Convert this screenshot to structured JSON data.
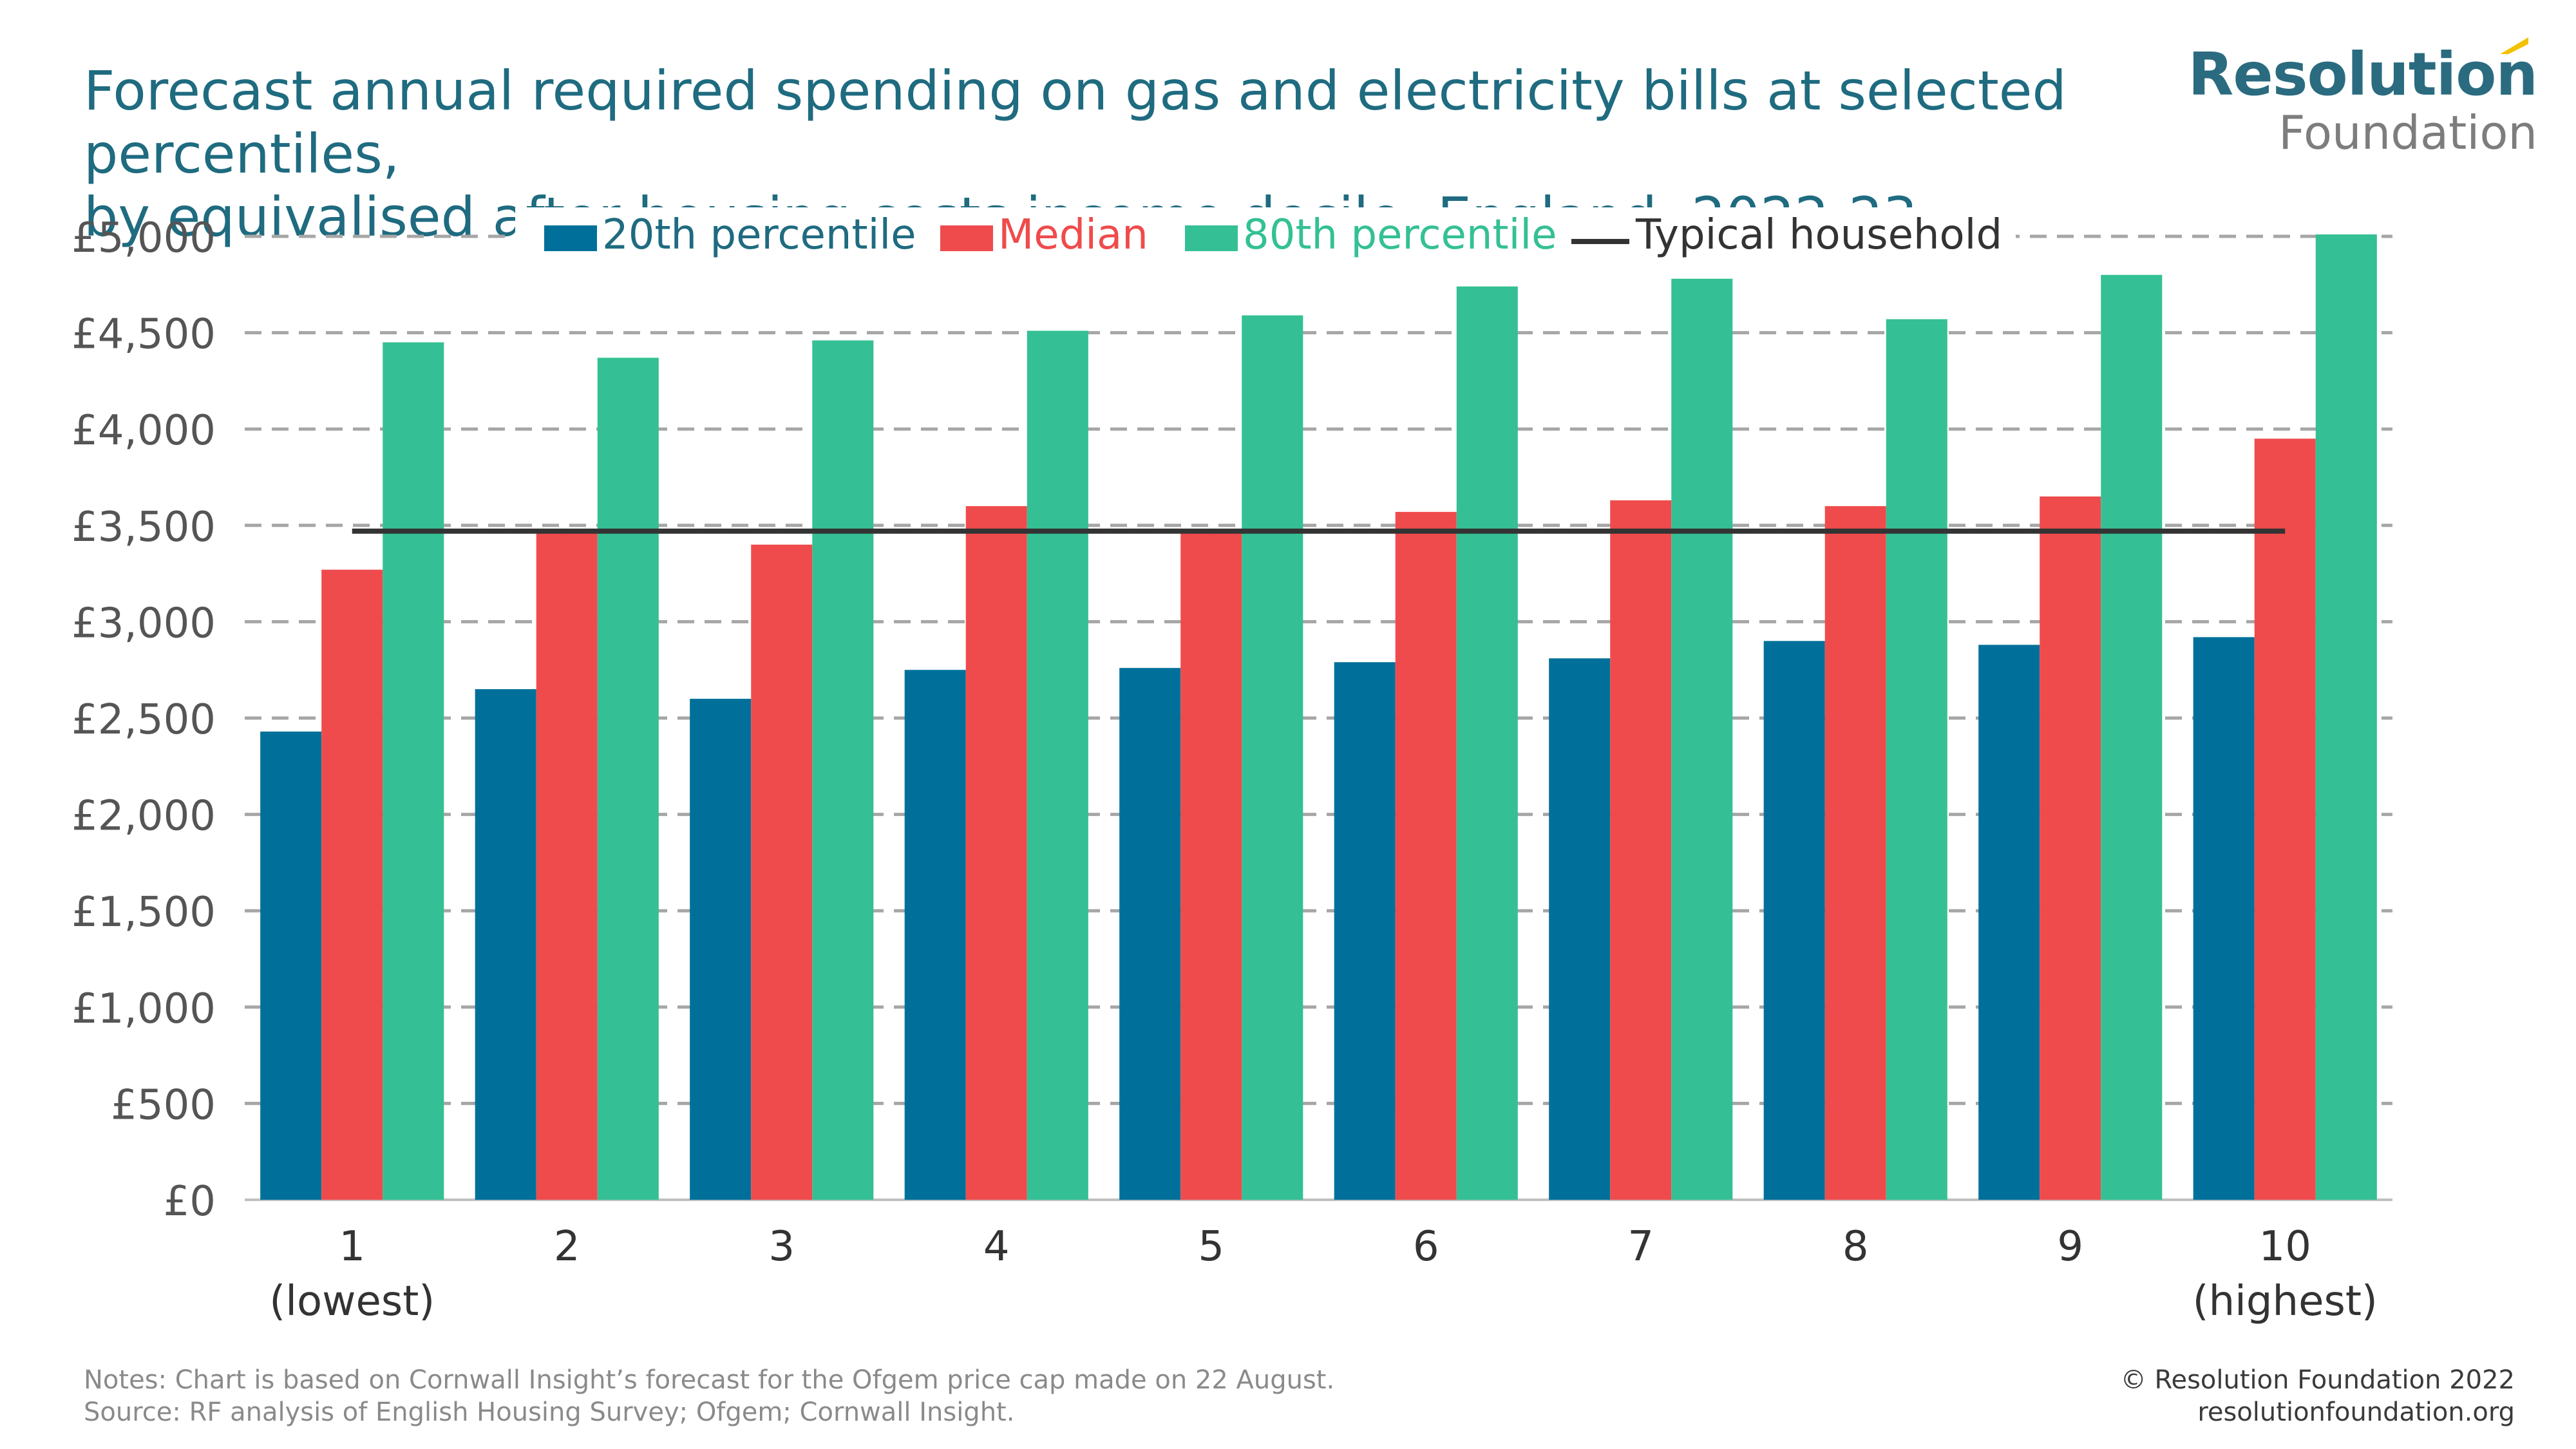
{
  "title_line1": "Forecast annual required spending on gas and electricity bills at selected percentiles,",
  "title_line2": "by equivalised after housing costs income decile: England, 2022-23",
  "logo": {
    "main": "Resolution",
    "sub": "Foundation"
  },
  "notes": "Notes: Chart is based on Cornwall Insight’s forecast for the Ofgem price cap made on 22 August.",
  "source": "Source: RF analysis of English Housing Survey; Ofgem; Cornwall Insight.",
  "copyright": "© Resolution Foundation 2022",
  "website": "resolutionfoundation.org",
  "colors": {
    "series_20th": "#00709a",
    "series_median": "#ef4b4c",
    "series_80th": "#34c094",
    "typical": "#333333",
    "title": "#1f6b80"
  },
  "chart_data": {
    "type": "bar",
    "title": "Forecast annual required spending on gas and electricity bills at selected percentiles, by equivalised after housing costs income decile: England, 2022-23",
    "xlabel": "",
    "ylabel": "",
    "ylim": [
      0,
      5000
    ],
    "yticks": [
      0,
      500,
      1000,
      1500,
      2000,
      2500,
      3000,
      3500,
      4000,
      4500,
      5000
    ],
    "ytick_labels": [
      "£0",
      "£500",
      "£1,000",
      "£1,500",
      "£2,000",
      "£2,500",
      "£3,000",
      "£3,500",
      "£4,000",
      "£4,500",
      "£5,000"
    ],
    "categories": [
      "1",
      "2",
      "3",
      "4",
      "5",
      "6",
      "7",
      "8",
      "9",
      "10"
    ],
    "category_sublabels": [
      "(lowest)",
      "",
      "",
      "",
      "",
      "",
      "",
      "",
      "",
      "(highest)"
    ],
    "legend_position": "top",
    "series": [
      {
        "name": "20th percentile",
        "color": "#00709a",
        "values": [
          2430,
          2650,
          2600,
          2750,
          2760,
          2790,
          2810,
          2900,
          2880,
          2920
        ]
      },
      {
        "name": "Median",
        "color": "#ef4b4c",
        "values": [
          3270,
          3460,
          3400,
          3600,
          3480,
          3570,
          3630,
          3600,
          3650,
          3950
        ]
      },
      {
        "name": "80th percentile",
        "color": "#34c094",
        "values": [
          4450,
          4370,
          4460,
          4510,
          4590,
          4740,
          4780,
          4570,
          4800,
          5010
        ]
      }
    ],
    "reference_line": {
      "name": "Typical household",
      "value": 3470,
      "color": "#333333"
    }
  }
}
